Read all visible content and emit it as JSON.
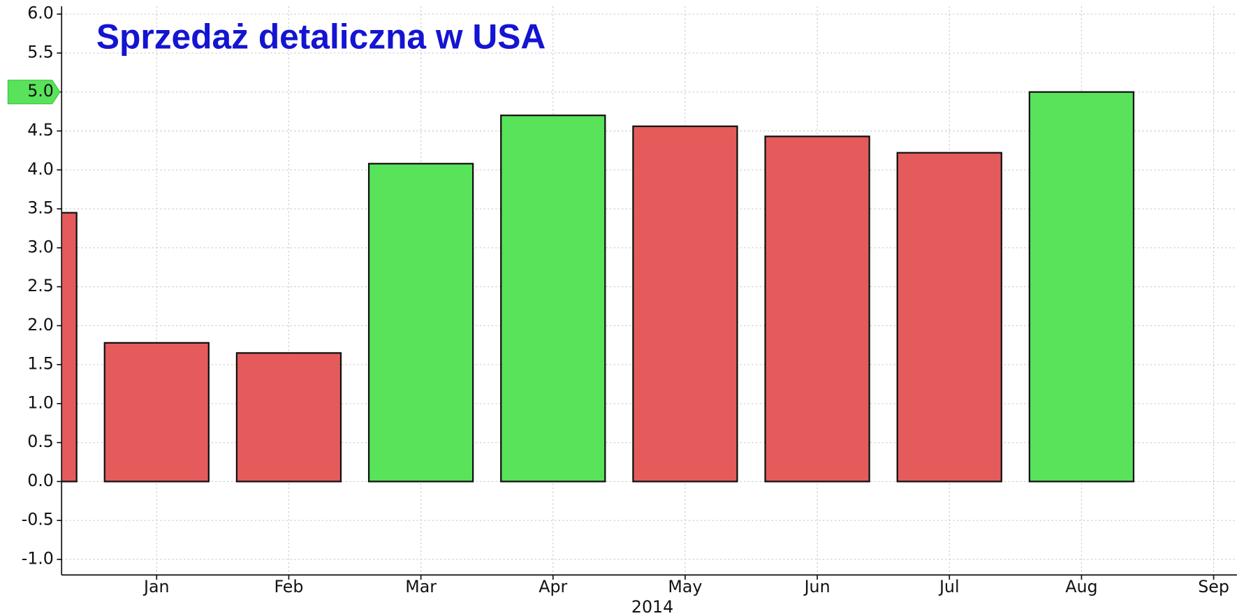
{
  "chart_data": {
    "type": "bar",
    "title": "Sprzedaż detaliczna w USA",
    "x_label": "2014",
    "categories": [
      null,
      "Jan",
      "Feb",
      "Mar",
      "Apr",
      "May",
      "Jun",
      "Jul",
      "Aug",
      "Sep"
    ],
    "values": [
      3.45,
      1.78,
      1.65,
      4.08,
      4.7,
      4.56,
      4.43,
      4.22,
      5.0,
      null
    ],
    "colors": [
      "#e55b5b",
      "#e55b5b",
      "#e55b5b",
      "#58e35a",
      "#58e35a",
      "#e55b5b",
      "#e55b5b",
      "#e55b5b",
      "#58e35a",
      null
    ],
    "ylim": [
      -1.2,
      6.1
    ],
    "yticks": [
      {
        "value": -1,
        "label": "-1.0"
      },
      {
        "value": -0.5,
        "label": "-0.5"
      },
      {
        "value": 0,
        "label": "0.0"
      },
      {
        "value": 0.5,
        "label": "0.5"
      },
      {
        "value": 1,
        "label": "1.0"
      },
      {
        "value": 1.5,
        "label": "1.5"
      },
      {
        "value": 2,
        "label": "2.0"
      },
      {
        "value": 2.5,
        "label": "2.5"
      },
      {
        "value": 3,
        "label": "3.0"
      },
      {
        "value": 3.5,
        "label": "3.5"
      },
      {
        "value": 4,
        "label": "4.0"
      },
      {
        "value": 4.5,
        "label": "4.5"
      },
      {
        "value": 5,
        "label": "5.0"
      },
      {
        "value": 5.5,
        "label": "5.5"
      },
      {
        "value": 6,
        "label": "6.0"
      }
    ],
    "highlighted_ytick": 5,
    "grid": true
  }
}
